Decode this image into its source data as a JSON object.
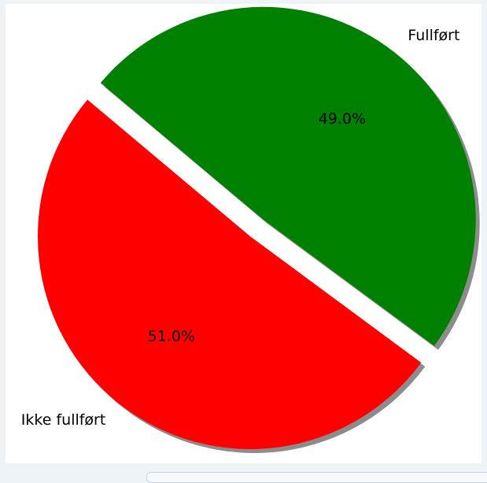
{
  "chart_data": {
    "type": "pie",
    "title": "",
    "categories": [
      "Ikke fullført",
      "Fullført"
    ],
    "values": [
      51.0,
      49.0
    ],
    "percent_labels": [
      "51.0%",
      "49.0%"
    ],
    "colors": [
      "#ff0000",
      "#008000"
    ],
    "explode": [
      0,
      1
    ],
    "shadow": true,
    "start_angle": 140,
    "direction": "counter-clockwise",
    "legend": false,
    "grid": false
  }
}
